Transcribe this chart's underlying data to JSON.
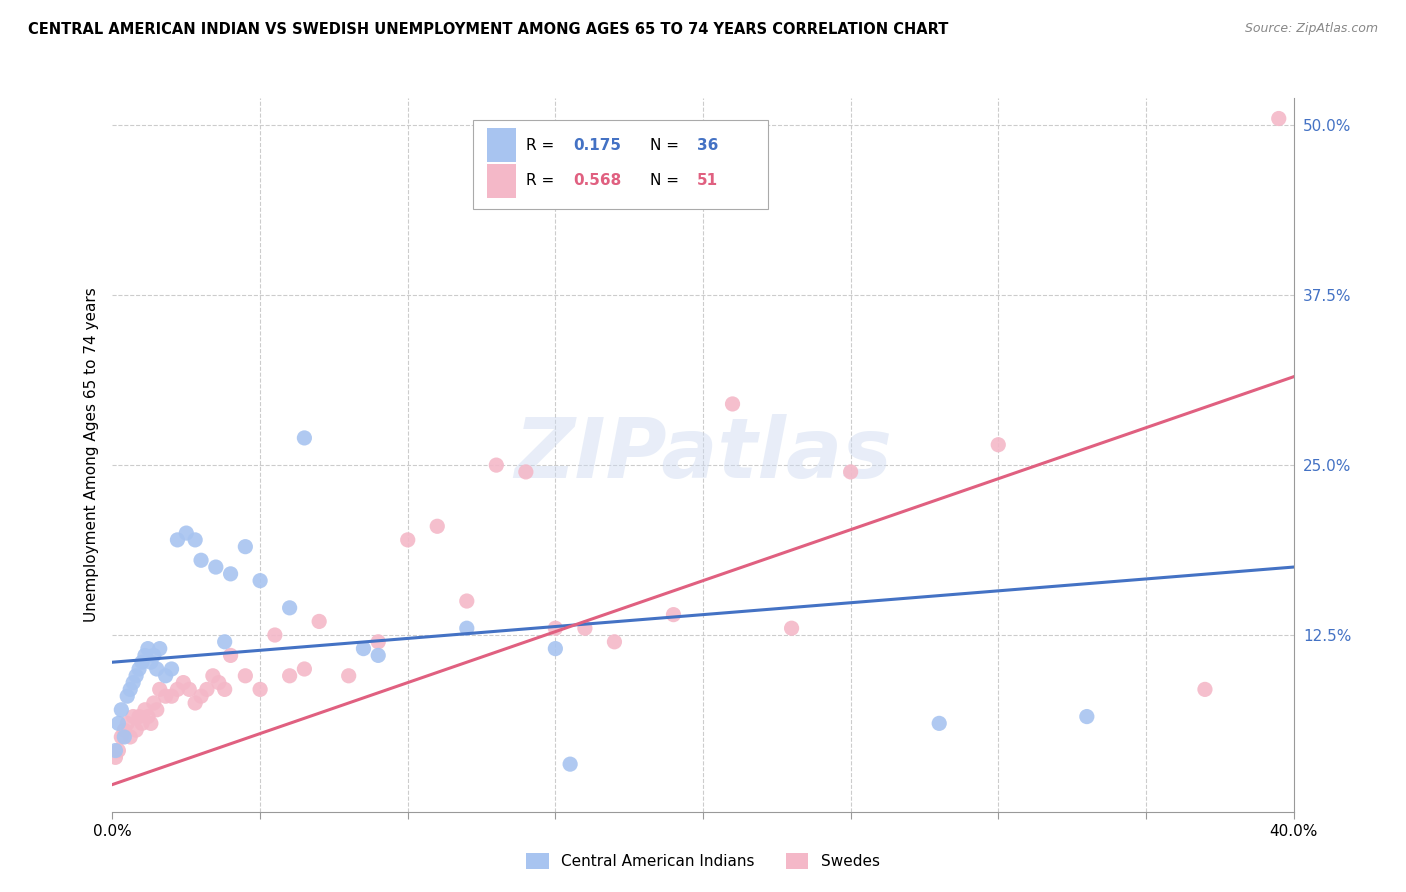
{
  "title": "CENTRAL AMERICAN INDIAN VS SWEDISH UNEMPLOYMENT AMONG AGES 65 TO 74 YEARS CORRELATION CHART",
  "source": "Source: ZipAtlas.com",
  "ylabel": "Unemployment Among Ages 65 to 74 years",
  "xlim": [
    0.0,
    0.4
  ],
  "ylim": [
    -0.005,
    0.52
  ],
  "xticks": [
    0.0,
    0.05,
    0.1,
    0.15,
    0.2,
    0.25,
    0.3,
    0.35,
    0.4
  ],
  "xticklabels": [
    "0.0%",
    "",
    "",
    "",
    "",
    "",
    "",
    "",
    "40.0%"
  ],
  "yticks_right": [
    0.0,
    0.125,
    0.25,
    0.375,
    0.5
  ],
  "yticklabels_right": [
    "",
    "12.5%",
    "25.0%",
    "37.5%",
    "50.0%"
  ],
  "legend_r1": "0.175",
  "legend_n1": "36",
  "legend_r2": "0.568",
  "legend_n2": "51",
  "color_blue": "#A8C4F0",
  "color_pink": "#F4B8C8",
  "color_blue_dark": "#4472C4",
  "color_pink_dark": "#E06080",
  "watermark": "ZIPatlas",
  "blue_scatter_x": [
    0.001,
    0.002,
    0.003,
    0.004,
    0.005,
    0.006,
    0.007,
    0.008,
    0.009,
    0.01,
    0.011,
    0.012,
    0.013,
    0.014,
    0.015,
    0.016,
    0.018,
    0.02,
    0.022,
    0.025,
    0.028,
    0.03,
    0.035,
    0.038,
    0.04,
    0.045,
    0.05,
    0.06,
    0.065,
    0.085,
    0.09,
    0.12,
    0.15,
    0.155,
    0.28,
    0.33
  ],
  "blue_scatter_y": [
    0.04,
    0.06,
    0.07,
    0.05,
    0.08,
    0.085,
    0.09,
    0.095,
    0.1,
    0.105,
    0.11,
    0.115,
    0.105,
    0.11,
    0.1,
    0.115,
    0.095,
    0.1,
    0.195,
    0.2,
    0.195,
    0.18,
    0.175,
    0.12,
    0.17,
    0.19,
    0.165,
    0.145,
    0.27,
    0.115,
    0.11,
    0.13,
    0.115,
    0.03,
    0.06,
    0.065
  ],
  "pink_scatter_x": [
    0.001,
    0.002,
    0.003,
    0.004,
    0.005,
    0.006,
    0.007,
    0.008,
    0.009,
    0.01,
    0.011,
    0.012,
    0.013,
    0.014,
    0.015,
    0.016,
    0.018,
    0.02,
    0.022,
    0.024,
    0.026,
    0.028,
    0.03,
    0.032,
    0.034,
    0.036,
    0.038,
    0.04,
    0.045,
    0.05,
    0.055,
    0.06,
    0.065,
    0.07,
    0.08,
    0.09,
    0.1,
    0.11,
    0.12,
    0.13,
    0.14,
    0.15,
    0.16,
    0.17,
    0.19,
    0.21,
    0.23,
    0.25,
    0.3,
    0.37,
    0.395
  ],
  "pink_scatter_y": [
    0.035,
    0.04,
    0.05,
    0.055,
    0.06,
    0.05,
    0.065,
    0.055,
    0.065,
    0.06,
    0.07,
    0.065,
    0.06,
    0.075,
    0.07,
    0.085,
    0.08,
    0.08,
    0.085,
    0.09,
    0.085,
    0.075,
    0.08,
    0.085,
    0.095,
    0.09,
    0.085,
    0.11,
    0.095,
    0.085,
    0.125,
    0.095,
    0.1,
    0.135,
    0.095,
    0.12,
    0.195,
    0.205,
    0.15,
    0.25,
    0.245,
    0.13,
    0.13,
    0.12,
    0.14,
    0.295,
    0.13,
    0.245,
    0.265,
    0.085,
    0.505
  ],
  "blue_trend_x": [
    0.0,
    0.4
  ],
  "blue_trend_y": [
    0.105,
    0.175
  ],
  "pink_trend_x": [
    0.0,
    0.4
  ],
  "pink_trend_y": [
    0.015,
    0.315
  ]
}
